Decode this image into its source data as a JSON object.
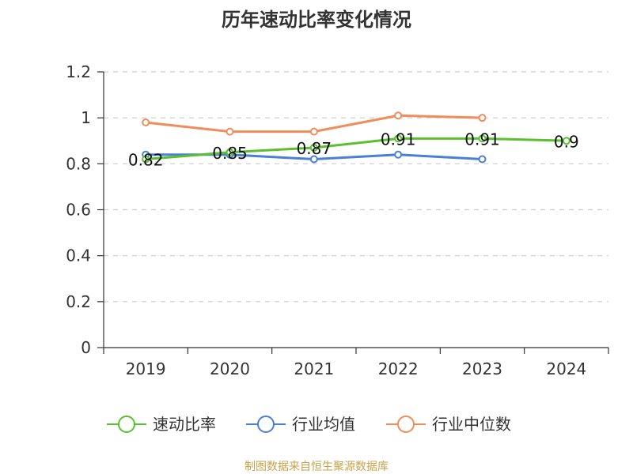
{
  "chart_data": {
    "type": "line",
    "title": "历年速动比率变化情况",
    "categories": [
      "2019",
      "2020",
      "2021",
      "2022",
      "2023",
      "2024"
    ],
    "ylim": [
      0,
      1.2
    ],
    "y_ticks": [
      "0",
      "0.2",
      "0.4",
      "0.6",
      "0.8",
      "1",
      "1.2"
    ],
    "grid": true,
    "legend_position": "bottom",
    "series": [
      {
        "name": "速动比率",
        "color": "#5ac02c",
        "values": [
          0.82,
          0.85,
          0.87,
          0.91,
          0.91,
          0.9
        ],
        "labels": [
          "0.82",
          "0.85",
          "0.87",
          "0.91",
          "0.91",
          "0.9"
        ]
      },
      {
        "name": "行业均值",
        "color": "#4a7fd8",
        "values": [
          0.84,
          0.84,
          0.82,
          0.84,
          0.82,
          null
        ]
      },
      {
        "name": "行业中位数",
        "color": "#f28c5a",
        "values": [
          0.98,
          0.94,
          0.94,
          1.01,
          1.0,
          null
        ]
      }
    ],
    "source": "制图数据来自恒生聚源数据库"
  }
}
